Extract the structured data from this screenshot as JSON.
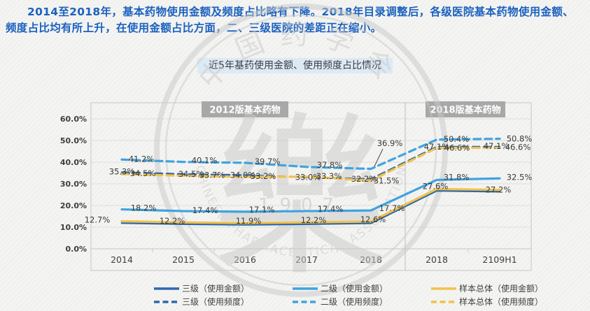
{
  "header": {
    "text": "2014至2018年，基本药物使用金额及频度占比略有下降。2018年目录调整后，各级医院基本药物使用金额、频度占比均有所上升，在使用金额占比方面，二、三级医院的差距正在缩小。"
  },
  "chart_data": {
    "type": "line",
    "title": "近5年基药使用金额、使用频度占比情况",
    "x_labels": [
      "2014",
      "2015",
      "2016",
      "2017",
      "2018",
      "2018",
      "2109H1"
    ],
    "sections": [
      {
        "label": "2012版基本药物",
        "x_range": [
          0,
          4
        ]
      },
      {
        "label": "2018版基本药物",
        "x_range": [
          5,
          6
        ]
      }
    ],
    "ylim": [
      0,
      60
    ],
    "ytick_labels": [
      "0.0%",
      "10.0%",
      "20.0%",
      "30.0%",
      "40.0%",
      "50.0%",
      "60.0%"
    ],
    "grid": true,
    "legend_position": "bottom",
    "series": [
      {
        "name": "三级（使用金额）",
        "style": "solid",
        "color": "#2e68ac",
        "values": [
          12.7,
          12.2,
          11.9,
          12.2,
          12.6,
          27.6,
          27.2
        ],
        "show_labels": false
      },
      {
        "name": "二级（使用金额）",
        "style": "solid",
        "color": "#3fa3e0",
        "values": [
          18.2,
          17.4,
          17.1,
          17.4,
          17.7,
          31.8,
          32.5
        ],
        "show_labels": true
      },
      {
        "name": "样本总体（使用金额）",
        "style": "solid",
        "color": "#f1c24b",
        "values": [
          12.7,
          12.2,
          11.9,
          12.2,
          12.6,
          27.6,
          27.2
        ],
        "show_labels": true
      },
      {
        "name": "三级（使用频度）",
        "style": "dashed",
        "color": "#2e68ac",
        "values": [
          35.3,
          34.5,
          34.0,
          33.0,
          32.2,
          47.1,
          47.1
        ],
        "show_labels": true
      },
      {
        "name": "二级（使用频度）",
        "style": "dashed",
        "color": "#3fa3e0",
        "values": [
          41.2,
          40.1,
          39.7,
          37.8,
          36.9,
          50.4,
          50.8
        ],
        "show_labels": true
      },
      {
        "name": "样本总体（使用频度）",
        "style": "dashed",
        "color": "#f1c24b",
        "values": [
          34.5,
          33.7,
          33.2,
          33.3,
          31.5,
          46.6,
          46.6
        ],
        "show_labels": true
      }
    ],
    "watermark": {
      "org_cn": "中国药学会",
      "org_en": "CHINESE PHARMACEUTICAL ASSOCIATION",
      "year": "1907",
      "glyph": "樂"
    }
  }
}
